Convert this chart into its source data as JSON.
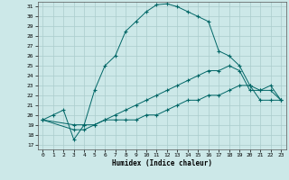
{
  "xlabel": "Humidex (Indice chaleur)",
  "xlim": [
    -0.5,
    23.5
  ],
  "ylim": [
    16.5,
    31.5
  ],
  "xticks": [
    0,
    1,
    2,
    3,
    4,
    5,
    6,
    7,
    8,
    9,
    10,
    11,
    12,
    13,
    14,
    15,
    16,
    17,
    18,
    19,
    20,
    21,
    22,
    23
  ],
  "yticks": [
    17,
    18,
    19,
    20,
    21,
    22,
    23,
    24,
    25,
    26,
    27,
    28,
    29,
    30,
    31
  ],
  "background_color": "#cce8e8",
  "grid_color": "#aacccc",
  "line_color": "#006666",
  "curve1_x": [
    0,
    1,
    2,
    3,
    4,
    5,
    6,
    7,
    8,
    9,
    10,
    11,
    12,
    13,
    14,
    15,
    16,
    17,
    18,
    19,
    20,
    21,
    22,
    23
  ],
  "curve1_y": [
    19.5,
    20.0,
    20.5,
    17.5,
    19.0,
    22.5,
    25.0,
    26.0,
    28.5,
    29.5,
    30.5,
    31.2,
    31.3,
    31.0,
    30.5,
    30.0,
    29.5,
    26.5,
    26.0,
    25.0,
    23.0,
    22.5,
    23.0,
    21.5
  ],
  "curve2_x": [
    0,
    3,
    4,
    5,
    6,
    7,
    8,
    9,
    10,
    11,
    12,
    13,
    14,
    15,
    16,
    17,
    18,
    19,
    20,
    21,
    22,
    23
  ],
  "curve2_y": [
    19.5,
    19.0,
    19.0,
    19.0,
    19.5,
    20.0,
    20.5,
    21.0,
    21.5,
    22.0,
    22.5,
    23.0,
    23.5,
    24.0,
    24.5,
    24.5,
    25.0,
    24.5,
    22.5,
    22.5,
    22.5,
    21.5
  ],
  "curve3_x": [
    0,
    3,
    4,
    5,
    6,
    7,
    8,
    9,
    10,
    11,
    12,
    13,
    14,
    15,
    16,
    17,
    18,
    19,
    20,
    21,
    22,
    23
  ],
  "curve3_y": [
    19.5,
    18.5,
    18.5,
    19.0,
    19.5,
    19.5,
    19.5,
    19.5,
    20.0,
    20.0,
    20.5,
    21.0,
    21.5,
    21.5,
    22.0,
    22.0,
    22.5,
    23.0,
    23.0,
    21.5,
    21.5,
    21.5
  ]
}
